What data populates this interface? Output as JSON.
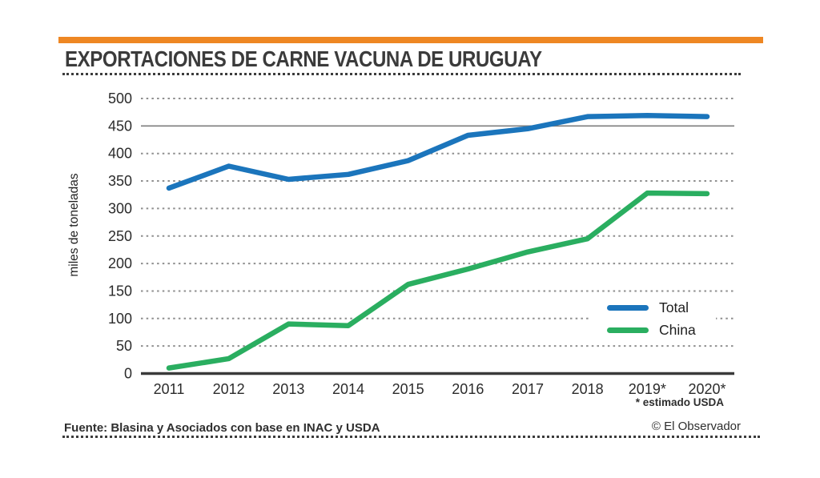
{
  "header": {
    "title": "EXPORTACIONES DE CARNE VACUNA DE URUGUAY"
  },
  "colors": {
    "accent_orange": "#ee8723",
    "total_blue": "#1b75bc",
    "china_green": "#2aae60",
    "grid_gray": "#8e8e8e",
    "axis_dark": "#3a3a3a"
  },
  "chart_data": {
    "type": "line",
    "title": "EXPORTACIONES DE CARNE VACUNA DE URUGUAY",
    "xlabel": "",
    "ylabel": "miles de toneladas",
    "categories": [
      "2011",
      "2012",
      "2013",
      "2014",
      "2015",
      "2016",
      "2017",
      "2018",
      "2019*",
      "2020*"
    ],
    "series": [
      {
        "name": "Total",
        "color": "#1b75bc",
        "values": [
          337,
          377,
          353,
          362,
          387,
          433,
          445,
          467,
          469,
          467
        ]
      },
      {
        "name": "China",
        "color": "#2aae60",
        "values": [
          10,
          27,
          90,
          87,
          162,
          190,
          221,
          245,
          328,
          327
        ]
      }
    ],
    "ylim": [
      0,
      500
    ],
    "ytick_step": 50,
    "grid": "horizontal dotted",
    "solid_gridline_at": 450,
    "legend_position": "inside bottom-right",
    "footnote": "* estimado USDA"
  },
  "footer": {
    "source": "Fuente: Blasina y Asociados con base en INAC y USDA",
    "credit": "© El Observador"
  }
}
